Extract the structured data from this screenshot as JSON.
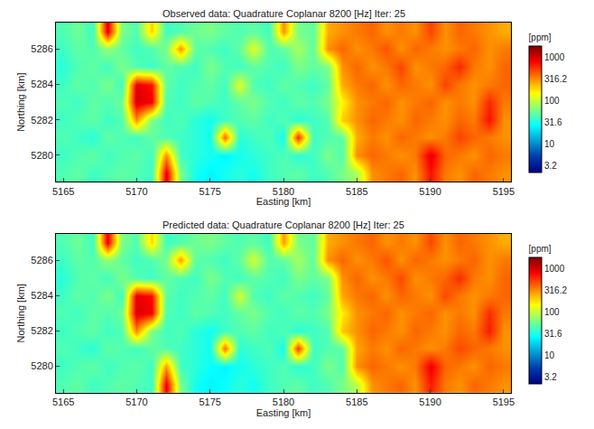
{
  "chart_data": [
    {
      "type": "heatmap",
      "title": "Observed data: Quadrature Coplanar 8200 [Hz] Iter: 25",
      "x_label": "Easting [km]",
      "y_label": "Northing [km]",
      "x": [
        5165,
        5166,
        5167,
        5168,
        5169,
        5170,
        5171,
        5172,
        5173,
        5174,
        5175,
        5176,
        5177,
        5178,
        5179,
        5180,
        5181,
        5182,
        5183,
        5184,
        5185,
        5186,
        5187,
        5188,
        5189,
        5190,
        5191,
        5192,
        5193,
        5194,
        5195
      ],
      "y": [
        5279,
        5280,
        5281,
        5282,
        5283,
        5284,
        5285,
        5286,
        5287
      ],
      "z": [
        [
          45,
          50,
          40,
          45,
          50,
          45,
          40,
          900,
          60,
          30,
          25,
          30,
          35,
          30,
          40,
          45,
          50,
          40,
          45,
          60,
          80,
          300,
          350,
          400,
          300,
          700,
          350,
          300,
          400,
          350,
          300
        ],
        [
          40,
          45,
          50,
          40,
          45,
          50,
          40,
          300,
          40,
          35,
          30,
          25,
          30,
          35,
          40,
          45,
          35,
          40,
          60,
          45,
          300,
          400,
          350,
          300,
          350,
          900,
          400,
          350,
          300,
          400,
          350
        ],
        [
          45,
          40,
          35,
          50,
          45,
          40,
          50,
          45,
          40,
          35,
          30,
          400,
          35,
          40,
          45,
          30,
          600,
          40,
          45,
          50,
          250,
          350,
          300,
          400,
          350,
          300,
          350,
          500,
          400,
          350,
          300
        ],
        [
          40,
          45,
          50,
          40,
          45,
          300,
          60,
          40,
          45,
          35,
          30,
          40,
          45,
          50,
          40,
          45,
          35,
          40,
          45,
          200,
          300,
          400,
          350,
          300,
          400,
          350,
          300,
          400,
          350,
          700,
          300
        ],
        [
          45,
          40,
          50,
          45,
          55,
          1000,
          800,
          45,
          40,
          50,
          45,
          40,
          50,
          60,
          45,
          40,
          50,
          45,
          60,
          150,
          300,
          350,
          400,
          300,
          350,
          400,
          300,
          350,
          300,
          600,
          350
        ],
        [
          40,
          50,
          45,
          60,
          40,
          900,
          700,
          50,
          40,
          45,
          50,
          40,
          120,
          45,
          40,
          50,
          45,
          40,
          50,
          250,
          350,
          400,
          300,
          400,
          350,
          300,
          500,
          350,
          300,
          350,
          400
        ],
        [
          35,
          45,
          50,
          40,
          60,
          45,
          40,
          50,
          45,
          40,
          60,
          45,
          40,
          50,
          45,
          40,
          60,
          50,
          60,
          300,
          400,
          300,
          350,
          500,
          300,
          350,
          400,
          600,
          350,
          300,
          400
        ],
        [
          40,
          50,
          45,
          70,
          50,
          40,
          45,
          60,
          300,
          50,
          45,
          40,
          50,
          120,
          45,
          50,
          80,
          50,
          300,
          400,
          300,
          350,
          450,
          300,
          400,
          350,
          300,
          350,
          400,
          300,
          350
        ],
        [
          45,
          55,
          40,
          900,
          60,
          45,
          200,
          40,
          45,
          55,
          60,
          50,
          45,
          50,
          40,
          300,
          60,
          50,
          250,
          300,
          350,
          400,
          300,
          350,
          300,
          500,
          300,
          400,
          350,
          300,
          250
        ]
      ],
      "xlim": [
        5164.5,
        5195.5
      ],
      "ylim": [
        5278.5,
        5287.5
      ],
      "xticks": [
        5165,
        5170,
        5175,
        5180,
        5185,
        5190,
        5195
      ],
      "yticks": [
        5280,
        5282,
        5284,
        5286
      ],
      "colorbar": {
        "title": "[ppm]",
        "range": [
          2.2,
          1800
        ],
        "ticks": [
          3.2,
          10,
          31.6,
          100,
          316.2,
          1000
        ],
        "log": true
      }
    },
    {
      "type": "heatmap",
      "title": "Predicted data: Quadrature Coplanar 8200 [Hz] Iter: 25",
      "x_label": "Easting [km]",
      "y_label": "Northing [km]",
      "x": [
        5165,
        5166,
        5167,
        5168,
        5169,
        5170,
        5171,
        5172,
        5173,
        5174,
        5175,
        5176,
        5177,
        5178,
        5179,
        5180,
        5181,
        5182,
        5183,
        5184,
        5185,
        5186,
        5187,
        5188,
        5189,
        5190,
        5191,
        5192,
        5193,
        5194,
        5195
      ],
      "y": [
        5279,
        5280,
        5281,
        5282,
        5283,
        5284,
        5285,
        5286,
        5287
      ],
      "z": [
        [
          45,
          50,
          40,
          45,
          50,
          45,
          40,
          850,
          60,
          30,
          25,
          28,
          35,
          30,
          40,
          45,
          50,
          40,
          45,
          60,
          90,
          300,
          350,
          400,
          300,
          650,
          350,
          300,
          400,
          350,
          300
        ],
        [
          40,
          45,
          50,
          40,
          45,
          50,
          40,
          280,
          40,
          35,
          28,
          25,
          30,
          35,
          40,
          45,
          35,
          40,
          60,
          45,
          300,
          400,
          350,
          300,
          350,
          850,
          400,
          350,
          300,
          400,
          350
        ],
        [
          45,
          40,
          35,
          50,
          45,
          40,
          50,
          45,
          40,
          35,
          30,
          380,
          35,
          40,
          45,
          30,
          550,
          40,
          45,
          50,
          260,
          350,
          300,
          400,
          350,
          300,
          350,
          480,
          400,
          350,
          300
        ],
        [
          40,
          45,
          50,
          40,
          45,
          320,
          60,
          40,
          45,
          35,
          30,
          40,
          45,
          50,
          40,
          45,
          35,
          40,
          45,
          210,
          300,
          400,
          350,
          300,
          400,
          350,
          300,
          400,
          350,
          650,
          300
        ],
        [
          45,
          40,
          50,
          45,
          55,
          950,
          800,
          45,
          40,
          50,
          45,
          40,
          50,
          60,
          45,
          40,
          50,
          45,
          60,
          160,
          300,
          350,
          400,
          300,
          350,
          400,
          300,
          350,
          300,
          580,
          350
        ],
        [
          40,
          50,
          45,
          60,
          40,
          900,
          720,
          50,
          40,
          45,
          50,
          40,
          110,
          45,
          40,
          50,
          45,
          40,
          50,
          260,
          350,
          400,
          300,
          400,
          350,
          300,
          480,
          350,
          300,
          350,
          400
        ],
        [
          35,
          45,
          50,
          40,
          60,
          45,
          40,
          50,
          45,
          40,
          60,
          45,
          40,
          50,
          45,
          40,
          60,
          50,
          60,
          300,
          400,
          300,
          350,
          480,
          300,
          350,
          400,
          580,
          350,
          300,
          400
        ],
        [
          40,
          50,
          45,
          70,
          50,
          40,
          45,
          60,
          280,
          50,
          45,
          40,
          50,
          110,
          45,
          50,
          80,
          50,
          300,
          400,
          300,
          350,
          450,
          300,
          400,
          350,
          300,
          350,
          400,
          300,
          350
        ],
        [
          45,
          55,
          40,
          850,
          60,
          45,
          190,
          40,
          45,
          55,
          60,
          50,
          45,
          50,
          40,
          280,
          60,
          50,
          250,
          300,
          350,
          400,
          300,
          350,
          300,
          480,
          300,
          400,
          350,
          300,
          250
        ]
      ],
      "xlim": [
        5164.5,
        5195.5
      ],
      "ylim": [
        5278.5,
        5287.5
      ],
      "xticks": [
        5165,
        5170,
        5175,
        5180,
        5185,
        5190,
        5195
      ],
      "yticks": [
        5280,
        5282,
        5284,
        5286
      ],
      "colorbar": {
        "title": "[ppm]",
        "range": [
          2.2,
          1800
        ],
        "ticks": [
          3.2,
          10,
          31.6,
          100,
          316.2,
          1000
        ],
        "log": true
      }
    }
  ]
}
